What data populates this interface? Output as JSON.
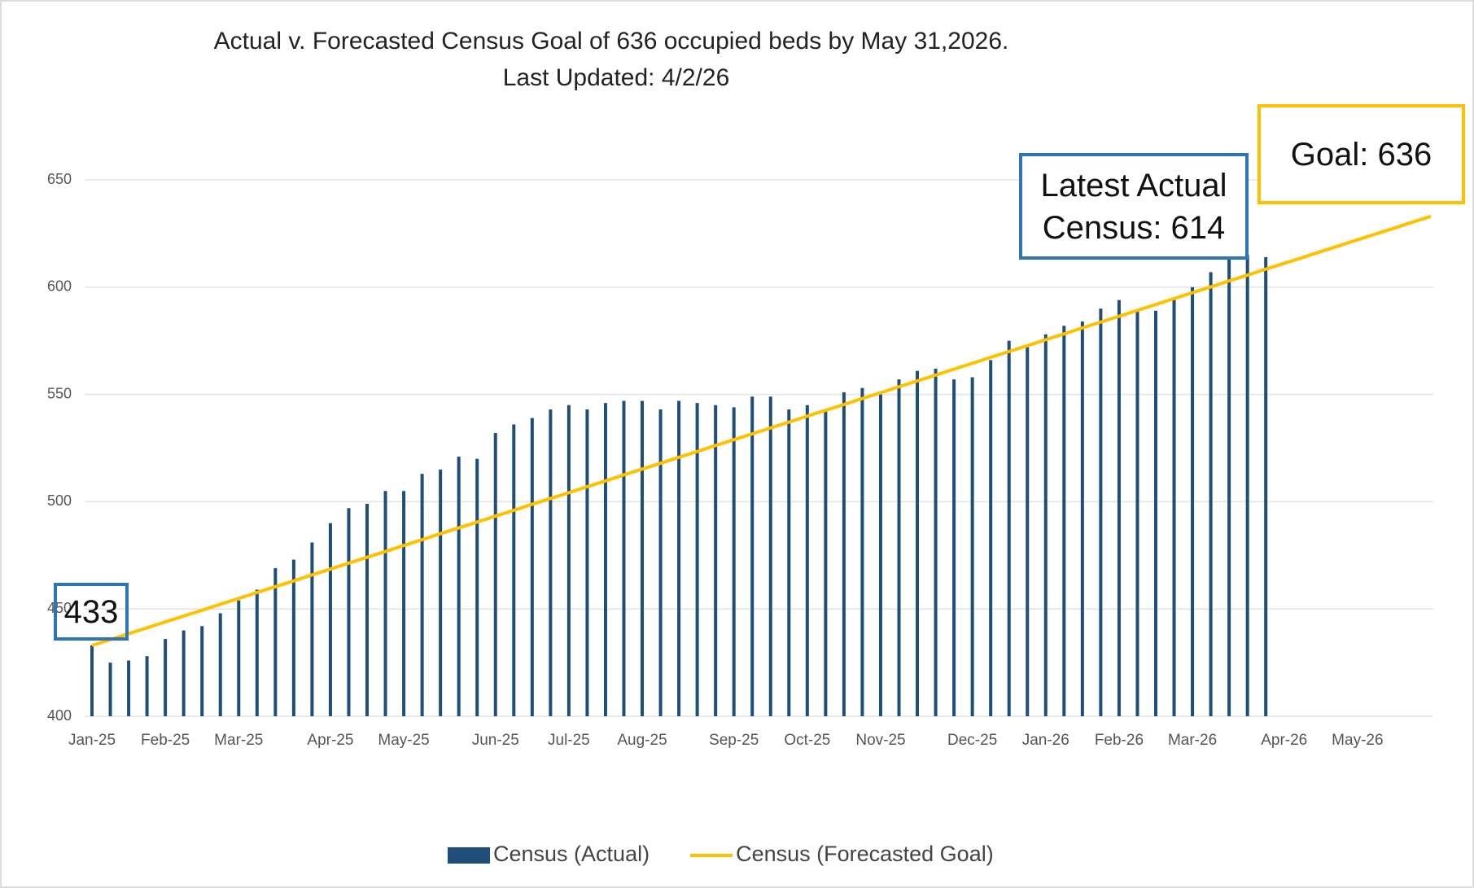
{
  "chart_data": {
    "type": "bar",
    "title": "Actual v. Forecasted Census Goal of 636 occupied beds by May 31,2026.",
    "subtitle": "Last Updated: 4/2/26",
    "categories": [
      "Jan-25",
      null,
      null,
      null,
      "Feb-25",
      null,
      null,
      null,
      "Mar-25",
      null,
      null,
      null,
      null,
      "Apr-25",
      null,
      null,
      null,
      "May-25",
      null,
      null,
      null,
      null,
      "Jun-25",
      null,
      null,
      null,
      "Jul-25",
      null,
      null,
      null,
      "Aug-25",
      null,
      null,
      null,
      null,
      "Sep-25",
      null,
      null,
      null,
      "Oct-25",
      null,
      null,
      null,
      "Nov-25",
      null,
      null,
      null,
      null,
      "Dec-25",
      null,
      null,
      null,
      "Jan-26",
      null,
      null,
      null,
      "Feb-26",
      null,
      null,
      null,
      "Mar-26",
      null,
      null,
      null,
      null,
      "Apr-26",
      null,
      null,
      null,
      "May-26",
      null,
      null,
      null,
      null
    ],
    "series": [
      {
        "name": "Census (Actual)",
        "type": "bar",
        "color": "#1f4e79",
        "values": [
          433,
          425,
          426,
          428,
          436,
          440,
          442,
          448,
          454,
          459,
          469,
          473,
          481,
          490,
          497,
          499,
          505,
          505,
          513,
          515,
          521,
          520,
          532,
          536,
          539,
          543,
          545,
          543,
          546,
          547,
          547,
          543,
          547,
          546,
          545,
          544,
          549,
          549,
          543,
          545,
          542,
          551,
          553,
          550,
          557,
          561,
          562,
          557,
          558,
          566,
          575,
          572,
          578,
          582,
          584,
          590,
          594,
          589,
          589,
          594,
          600,
          607,
          613,
          615,
          614,
          null,
          null,
          null,
          null,
          null,
          null,
          null,
          null,
          null
        ]
      },
      {
        "name": "Census (Forecasted Goal)",
        "type": "line",
        "color": "#ffc000",
        "values": [
          433,
          435.7,
          438.5,
          441.2,
          444,
          446.7,
          449.4,
          452.2,
          454.9,
          457.7,
          460.4,
          463.1,
          465.9,
          468.6,
          471.4,
          474.1,
          476.8,
          479.6,
          482.3,
          485.1,
          487.8,
          490.5,
          493.3,
          496,
          498.8,
          501.5,
          504.2,
          507,
          509.7,
          512.5,
          515.2,
          517.9,
          520.7,
          523.4,
          526.2,
          528.9,
          531.6,
          534.4,
          537.1,
          539.9,
          542.6,
          545.3,
          548.1,
          550.8,
          553.6,
          556.3,
          559,
          561.8,
          564.5,
          567.3,
          570,
          572.7,
          575.5,
          578.2,
          581,
          583.7,
          586.4,
          589.2,
          591.9,
          594.7,
          597.4,
          600.1,
          602.9,
          605.6,
          608.4,
          611.1,
          613.8,
          616.6,
          619.3,
          622.1,
          624.8,
          627.5,
          630.3,
          633
        ]
      }
    ],
    "ylim": [
      400,
      650
    ],
    "yticks": [
      400,
      450,
      500,
      550,
      600,
      650
    ],
    "grid": true,
    "legend": "bottom",
    "annotations": [
      {
        "text": "433",
        "color": "#2e75b6"
      },
      {
        "text": "Latest Actual Census: 614",
        "color": "#2e75b6"
      },
      {
        "text": "Goal: 636",
        "color": "#ffc000"
      }
    ]
  }
}
